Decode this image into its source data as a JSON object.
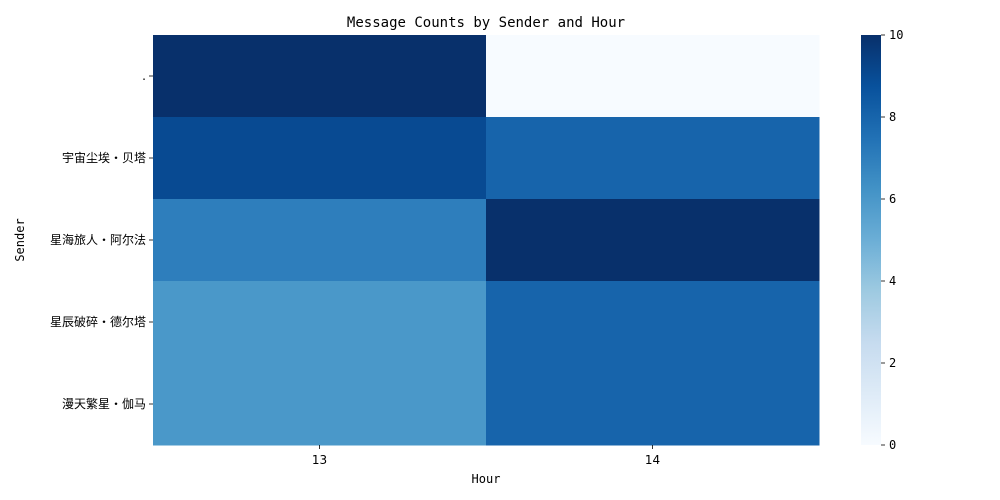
{
  "chart_data": {
    "type": "heatmap",
    "title": "Message Counts by Sender and Hour",
    "xlabel": "Hour",
    "ylabel": "Sender",
    "x_categories": [
      "13",
      "14"
    ],
    "y_categories": [
      ".",
      "宇宙尘埃・贝塔",
      "星海旅人・阿尔法",
      "星辰破碎・德尔塔",
      "漫天繁星・伽马"
    ],
    "values": [
      [
        10,
        0
      ],
      [
        9,
        8
      ],
      [
        7,
        10
      ],
      [
        6,
        8
      ],
      [
        6,
        8
      ]
    ],
    "colorbar": {
      "colormap": "Blues",
      "min": 0,
      "max": 10,
      "ticks": [
        "0",
        "2",
        "4",
        "6",
        "8",
        "10"
      ]
    }
  }
}
